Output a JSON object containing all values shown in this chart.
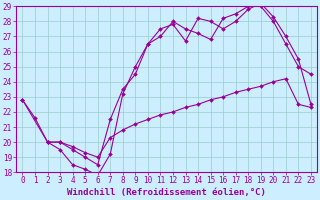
{
  "bg_color": "#cceeff",
  "line_color": "#990099",
  "grid_color": "#99cccc",
  "xlim": [
    -0.5,
    23.5
  ],
  "ylim": [
    18,
    29
  ],
  "xticks": [
    0,
    1,
    2,
    3,
    4,
    5,
    6,
    7,
    8,
    9,
    10,
    11,
    12,
    13,
    14,
    15,
    16,
    17,
    18,
    19,
    20,
    21,
    22,
    23
  ],
  "yticks": [
    18,
    19,
    20,
    21,
    22,
    23,
    24,
    25,
    26,
    27,
    28,
    29
  ],
  "line1_x": [
    0,
    1,
    2,
    3,
    4,
    5,
    6,
    7,
    8,
    9,
    10,
    11,
    12,
    13,
    14,
    15,
    16,
    17,
    18,
    19,
    20,
    21,
    22,
    23
  ],
  "line1_y": [
    22.8,
    21.6,
    20.0,
    19.5,
    18.5,
    18.2,
    17.8,
    19.2,
    23.2,
    25.0,
    26.5,
    27.0,
    28.0,
    27.5,
    27.2,
    26.8,
    28.2,
    28.5,
    29.0,
    29.0,
    28.0,
    26.5,
    25.0,
    24.5
  ],
  "line2_x": [
    0,
    2,
    3,
    4,
    5,
    6,
    7,
    8,
    9,
    10,
    11,
    12,
    13,
    14,
    15,
    16,
    17,
    18,
    19,
    20,
    21,
    22,
    23
  ],
  "line2_y": [
    22.8,
    20.0,
    20.0,
    19.5,
    19.0,
    18.5,
    21.5,
    23.5,
    24.5,
    26.5,
    27.5,
    27.8,
    26.7,
    28.2,
    28.0,
    27.5,
    28.0,
    28.8,
    29.2,
    28.3,
    27.0,
    25.5,
    22.5
  ],
  "line3_x": [
    2,
    3,
    4,
    5,
    6,
    7,
    8,
    9,
    10,
    11,
    12,
    13,
    14,
    15,
    16,
    17,
    18,
    19,
    20,
    21,
    22,
    23
  ],
  "line3_y": [
    20.0,
    20.0,
    19.7,
    19.3,
    19.0,
    20.3,
    20.8,
    21.2,
    21.5,
    21.8,
    22.0,
    22.3,
    22.5,
    22.8,
    23.0,
    23.3,
    23.5,
    23.7,
    24.0,
    24.2,
    22.5,
    22.3
  ],
  "xlabel": "Windchill (Refroidissement éolien,°C)",
  "marker": "D",
  "markersize": 2,
  "linewidth": 0.8,
  "tick_fontsize": 5.5,
  "label_fontsize": 6.5
}
